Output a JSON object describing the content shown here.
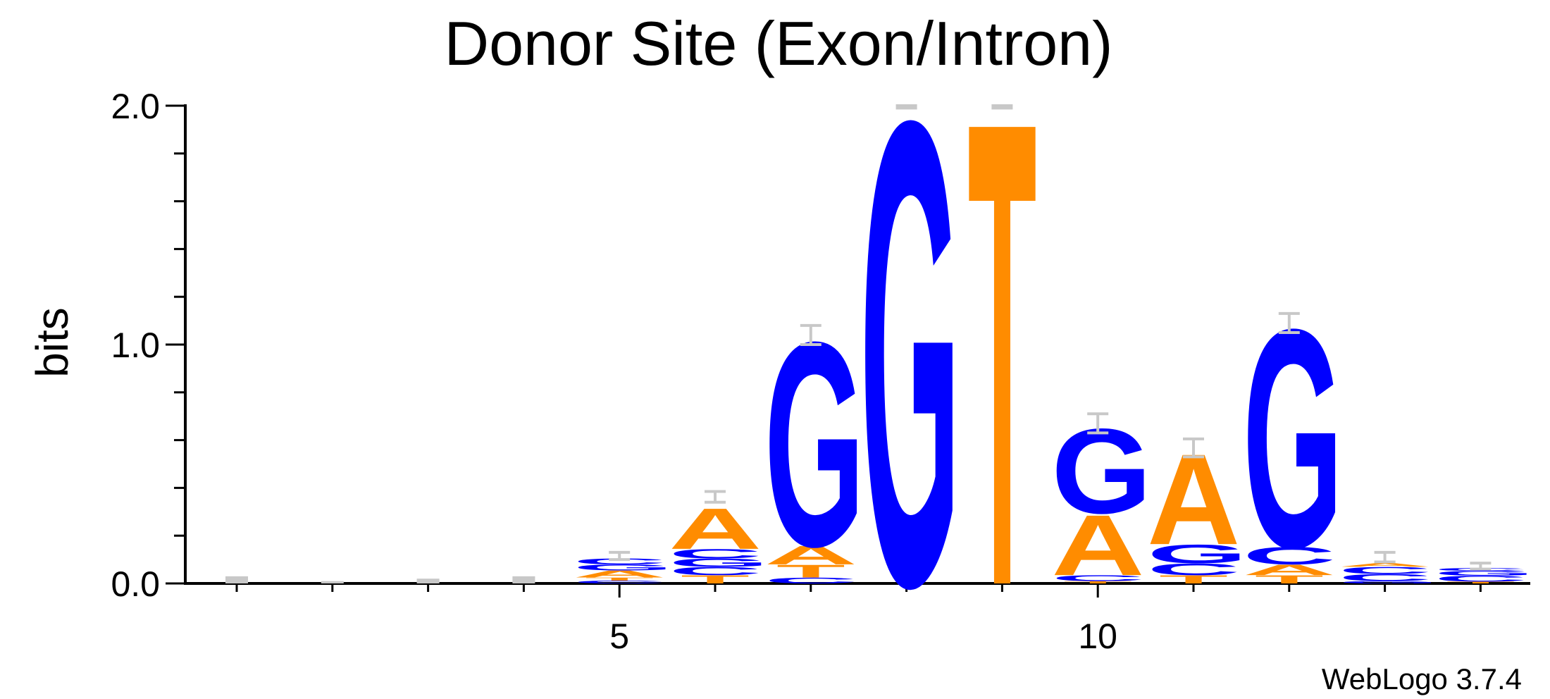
{
  "chart_data": {
    "type": "sequence_logo",
    "title": "Donor Site (Exon/Intron)",
    "ylabel": "bits",
    "xlabel": "",
    "ylim": [
      0,
      2.0
    ],
    "y_ticks": [
      "0.0",
      "1.0",
      "2.0"
    ],
    "x_ticks": [
      "5",
      "10"
    ],
    "x_tick_values": [
      5,
      10
    ],
    "positions": [
      1,
      2,
      3,
      4,
      5,
      6,
      7,
      8,
      9,
      10,
      11,
      12,
      13,
      14
    ],
    "colors": {
      "A": "#ff8c00",
      "T": "#ff8c00",
      "G": "#0000ff",
      "C": "#0000ff"
    },
    "columns": [
      {
        "pos": 1,
        "stack": [],
        "err": [
          0.0,
          0.03
        ]
      },
      {
        "pos": 2,
        "stack": [],
        "err": [
          0.0,
          0.01
        ]
      },
      {
        "pos": 3,
        "stack": [],
        "err": [
          0.0,
          0.02
        ]
      },
      {
        "pos": 4,
        "stack": [],
        "err": [
          0.0,
          0.03
        ]
      },
      {
        "pos": 5,
        "stack": [
          [
            "C",
            0.012
          ],
          [
            "T",
            0.013
          ],
          [
            "A",
            0.03
          ],
          [
            "G",
            0.025
          ],
          [
            "C",
            0.025
          ]
        ],
        "err": [
          0.1,
          0.13
        ]
      },
      {
        "pos": 6,
        "stack": [
          [
            "T",
            0.035
          ],
          [
            "C",
            0.035
          ],
          [
            "G",
            0.035
          ],
          [
            "C",
            0.04
          ],
          [
            "A",
            0.175
          ]
        ],
        "err": [
          0.34,
          0.385
        ]
      },
      {
        "pos": 7,
        "stack": [
          [
            "C",
            0.025
          ],
          [
            "T",
            0.055
          ],
          [
            "A",
            0.08
          ],
          [
            "G",
            0.88
          ]
        ],
        "err": [
          1.0,
          1.08
        ]
      },
      {
        "pos": 8,
        "stack": [
          [
            "G",
            2.0
          ]
        ],
        "err": [
          1.99,
          2.0
        ]
      },
      {
        "pos": 9,
        "stack": [
          [
            "T",
            2.0
          ]
        ],
        "err": [
          1.99,
          2.0
        ]
      },
      {
        "pos": 10,
        "stack": [
          [
            "T",
            0.01
          ],
          [
            "C",
            0.025
          ],
          [
            "A",
            0.26
          ],
          [
            "G",
            0.365
          ]
        ],
        "err": [
          0.63,
          0.71
        ]
      },
      {
        "pos": 11,
        "stack": [
          [
            "T",
            0.035
          ],
          [
            "C",
            0.05
          ],
          [
            "G",
            0.08
          ],
          [
            "A",
            0.39
          ]
        ],
        "err": [
          0.53,
          0.605
        ]
      },
      {
        "pos": 12,
        "stack": [
          [
            "T",
            0.035
          ],
          [
            "A",
            0.045
          ],
          [
            "C",
            0.075
          ],
          [
            "G",
            0.94
          ]
        ],
        "err": [
          1.05,
          1.13
        ]
      },
      {
        "pos": 13,
        "stack": [
          [
            "G",
            0.01
          ],
          [
            "C",
            0.03
          ],
          [
            "C",
            0.03
          ],
          [
            "A",
            0.015
          ]
        ],
        "err": [
          0.09,
          0.13
        ]
      },
      {
        "pos": 14,
        "stack": [
          [
            "T",
            0.008
          ],
          [
            "C",
            0.025
          ],
          [
            "G",
            0.02
          ],
          [
            "C",
            0.012
          ]
        ],
        "err": [
          0.06,
          0.085
        ]
      }
    ]
  },
  "credit": "WebLogo 3.7.4"
}
